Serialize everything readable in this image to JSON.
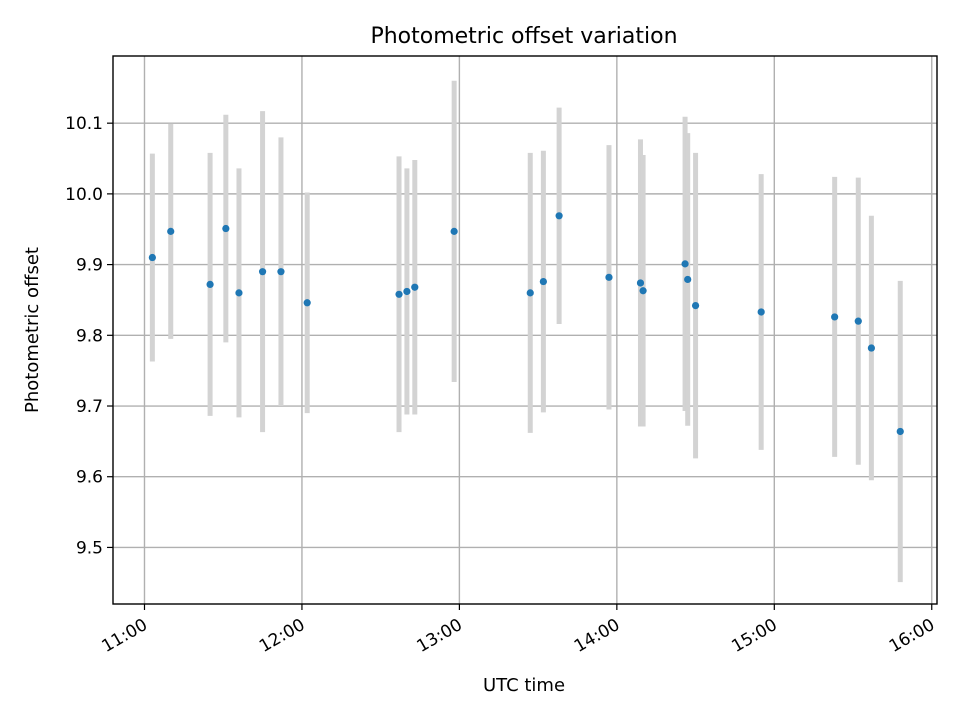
{
  "chart_data": {
    "type": "scatter",
    "title": "Photometric offset variation",
    "xlabel": "UTC time",
    "ylabel": "Photometric offset",
    "xlim": [
      "10:48",
      "16:02"
    ],
    "ylim": [
      9.42,
      10.195
    ],
    "x_ticks": [
      "11:00",
      "12:00",
      "13:00",
      "14:00",
      "15:00",
      "16:00"
    ],
    "y_ticks": [
      9.5,
      9.6,
      9.7,
      9.8,
      9.9,
      10.0,
      10.1
    ],
    "y_tick_labels": [
      "9.5",
      "9.6",
      "9.7",
      "9.8",
      "9.9",
      "10.0",
      "10.1"
    ],
    "grid": true,
    "colors": {
      "point": "#1f77b4",
      "errorbar": "#d3d3d3"
    },
    "points": [
      {
        "x": "11:03",
        "y": 9.91,
        "err": 0.147
      },
      {
        "x": "11:10",
        "y": 9.947,
        "err": 0.152
      },
      {
        "x": "11:25",
        "y": 9.872,
        "err": 0.186
      },
      {
        "x": "11:31",
        "y": 9.951,
        "err": 0.161
      },
      {
        "x": "11:36",
        "y": 9.86,
        "err": 0.176
      },
      {
        "x": "11:45",
        "y": 9.89,
        "err": 0.227
      },
      {
        "x": "11:52",
        "y": 9.89,
        "err": 0.19
      },
      {
        "x": "12:02",
        "y": 9.846,
        "err": 0.156
      },
      {
        "x": "12:37",
        "y": 9.858,
        "err": 0.195
      },
      {
        "x": "12:40",
        "y": 9.862,
        "err": 0.174
      },
      {
        "x": "12:43",
        "y": 9.868,
        "err": 0.18
      },
      {
        "x": "12:58",
        "y": 9.947,
        "err": 0.213
      },
      {
        "x": "13:27",
        "y": 9.86,
        "err": 0.198
      },
      {
        "x": "13:32",
        "y": 9.876,
        "err": 0.185
      },
      {
        "x": "13:38",
        "y": 9.969,
        "err": 0.153
      },
      {
        "x": "13:57",
        "y": 9.882,
        "err": 0.187
      },
      {
        "x": "14:09",
        "y": 9.874,
        "err": 0.203
      },
      {
        "x": "14:10",
        "y": 9.863,
        "err": 0.192
      },
      {
        "x": "14:26",
        "y": 9.901,
        "err": 0.208
      },
      {
        "x": "14:27",
        "y": 9.879,
        "err": 0.207
      },
      {
        "x": "14:30",
        "y": 9.842,
        "err": 0.216
      },
      {
        "x": "14:55",
        "y": 9.833,
        "err": 0.195
      },
      {
        "x": "15:23",
        "y": 9.826,
        "err": 0.198
      },
      {
        "x": "15:32",
        "y": 9.82,
        "err": 0.203
      },
      {
        "x": "15:37",
        "y": 9.782,
        "err": 0.187
      },
      {
        "x": "15:48",
        "y": 9.664,
        "err": 0.213
      }
    ]
  }
}
